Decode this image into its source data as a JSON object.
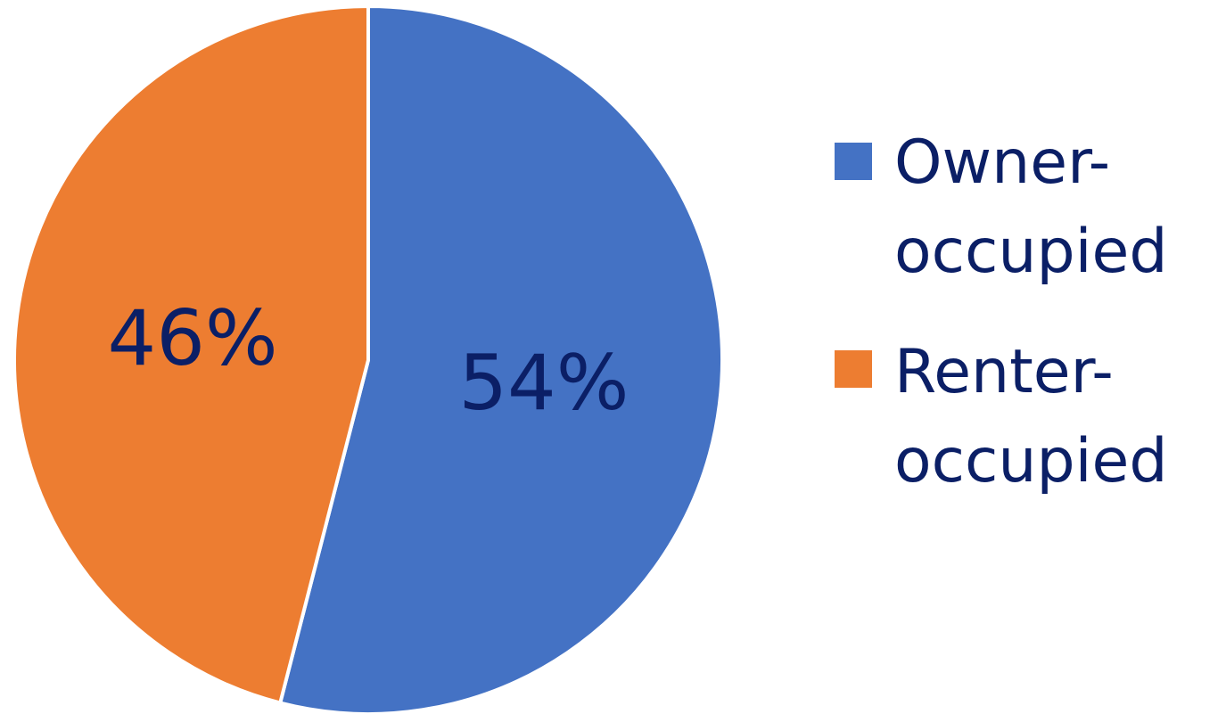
{
  "chart_data": {
    "type": "pie",
    "title": "",
    "series": [
      {
        "values": [
          54,
          46
        ]
      }
    ],
    "categories": [
      "Owner-occupied",
      "Renter-occupied"
    ],
    "values": [
      54,
      46
    ],
    "data_labels": [
      "54%",
      "46%"
    ],
    "colors": [
      "#4472c4",
      "#ed7d31"
    ],
    "legend": {
      "placement": "right",
      "entries": [
        {
          "lines": [
            "Owner-",
            "occupied"
          ],
          "color": "#4472c4"
        },
        {
          "lines": [
            "Renter-",
            "occupied"
          ],
          "color": "#ed7d31"
        }
      ]
    },
    "start_angle": "12 o'clock",
    "direction": "clockwise"
  },
  "text_color": "#0b1f66"
}
